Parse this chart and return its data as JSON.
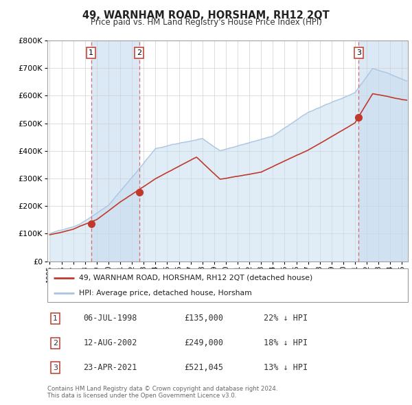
{
  "title": "49, WARNHAM ROAD, HORSHAM, RH12 2QT",
  "subtitle": "Price paid vs. HM Land Registry's House Price Index (HPI)",
  "ylim": [
    0,
    800000
  ],
  "yticks": [
    0,
    100000,
    200000,
    300000,
    400000,
    500000,
    600000,
    700000,
    800000
  ],
  "ytick_labels": [
    "£0",
    "£100K",
    "£200K",
    "£300K",
    "£400K",
    "£500K",
    "£600K",
    "£700K",
    "£800K"
  ],
  "hpi_color": "#a8c4e0",
  "hpi_fill_color": "#c8ddf0",
  "price_color": "#c0392b",
  "transaction_vline_color": "#e05050",
  "shade_color": "#dbe8f5",
  "transactions": [
    {
      "date_num": 1998.52,
      "price": 135000,
      "label": "1"
    },
    {
      "date_num": 2002.62,
      "price": 249000,
      "label": "2"
    },
    {
      "date_num": 2021.31,
      "price": 521045,
      "label": "3"
    }
  ],
  "legend_price_label": "49, WARNHAM ROAD, HORSHAM, RH12 2QT (detached house)",
  "legend_hpi_label": "HPI: Average price, detached house, Horsham",
  "table_rows": [
    {
      "num": "1",
      "date": "06-JUL-1998",
      "price": "£135,000",
      "pct": "22% ↓ HPI"
    },
    {
      "num": "2",
      "date": "12-AUG-2002",
      "price": "£249,000",
      "pct": "18% ↓ HPI"
    },
    {
      "num": "3",
      "date": "23-APR-2021",
      "price": "£521,045",
      "pct": "13% ↓ HPI"
    }
  ],
  "footer": "Contains HM Land Registry data © Crown copyright and database right 2024.\nThis data is licensed under the Open Government Licence v3.0.",
  "xmin": 1994.8,
  "xmax": 2025.5
}
